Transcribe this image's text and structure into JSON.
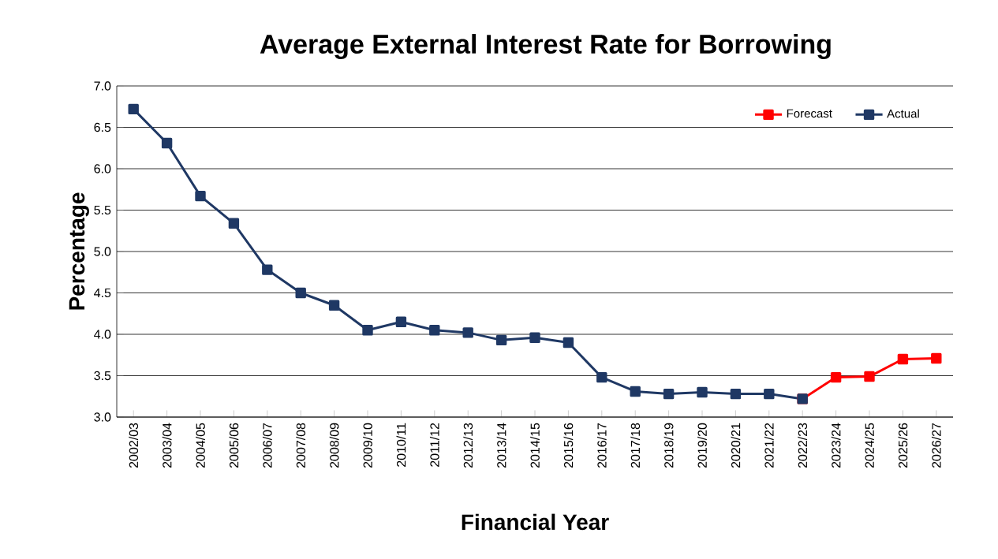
{
  "chart_data": {
    "type": "line",
    "title": "Average External Interest Rate for Borrowing",
    "xlabel": "Financial Year",
    "ylabel": "Percentage",
    "categories": [
      "2002/03",
      "2003/04",
      "2004/05",
      "2005/06",
      "2006/07",
      "2007/08",
      "2008/09",
      "2009/10",
      "2010/11",
      "2011/12",
      "2012/13",
      "2013/14",
      "2014/15",
      "2015/16",
      "2016/17",
      "2017/18",
      "2018/19",
      "2019/20",
      "2020/21",
      "2021/22",
      "2022/23",
      "2023/24",
      "2024/25",
      "2025/26",
      "2026/27"
    ],
    "series": [
      {
        "name": "Forecast",
        "color": "#ff0000",
        "values": [
          null,
          null,
          null,
          null,
          null,
          null,
          null,
          null,
          null,
          null,
          null,
          null,
          null,
          null,
          null,
          null,
          null,
          null,
          null,
          null,
          3.22,
          3.48,
          3.49,
          3.7,
          3.71
        ]
      },
      {
        "name": "Actual",
        "color": "#1f3864",
        "values": [
          6.72,
          6.31,
          5.67,
          5.34,
          4.78,
          4.5,
          4.35,
          4.05,
          4.15,
          4.05,
          4.02,
          3.93,
          3.96,
          3.9,
          3.48,
          3.31,
          3.28,
          3.3,
          3.28,
          3.28,
          3.22,
          null,
          null,
          null,
          null
        ]
      }
    ],
    "ylim": [
      3.0,
      7.0
    ],
    "yticks": [
      {
        "value": 3,
        "label": "3.0"
      },
      {
        "value": 3.5,
        "label": "3.5"
      },
      {
        "value": 4,
        "label": "4.0"
      },
      {
        "value": 4.5,
        "label": "4.5"
      },
      {
        "value": 5,
        "label": "5.0"
      },
      {
        "value": 5.5,
        "label": "5.5"
      },
      {
        "value": 6,
        "label": "6.0"
      },
      {
        "value": 6.5,
        "label": "6.5"
      },
      {
        "value": 7,
        "label": "7.0"
      }
    ],
    "grid": "y",
    "legend": "top right",
    "marker": "square",
    "line_style": "solid"
  }
}
